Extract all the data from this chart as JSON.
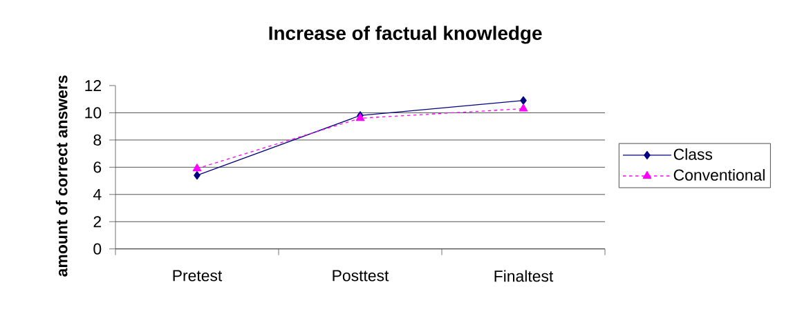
{
  "chart_data": {
    "type": "line",
    "title": "Increase of factual knowledge",
    "ylabel": "amount of correct answers",
    "categories": [
      "Pretest",
      "Posttest",
      "Finaltest"
    ],
    "series": [
      {
        "name": "Class",
        "color": "#000080",
        "values": [
          5.4,
          9.8,
          10.9
        ],
        "marker": "diamond",
        "line_style": "solid"
      },
      {
        "name": "Conventional",
        "color": "#ff00ff",
        "values": [
          5.9,
          9.6,
          10.3
        ],
        "marker": "triangle",
        "line_style": "dashed"
      }
    ],
    "ylim": [
      0,
      12
    ],
    "yticks": [
      0,
      2,
      4,
      6,
      8,
      10,
      12
    ],
    "grid": "y",
    "legend": "right"
  }
}
